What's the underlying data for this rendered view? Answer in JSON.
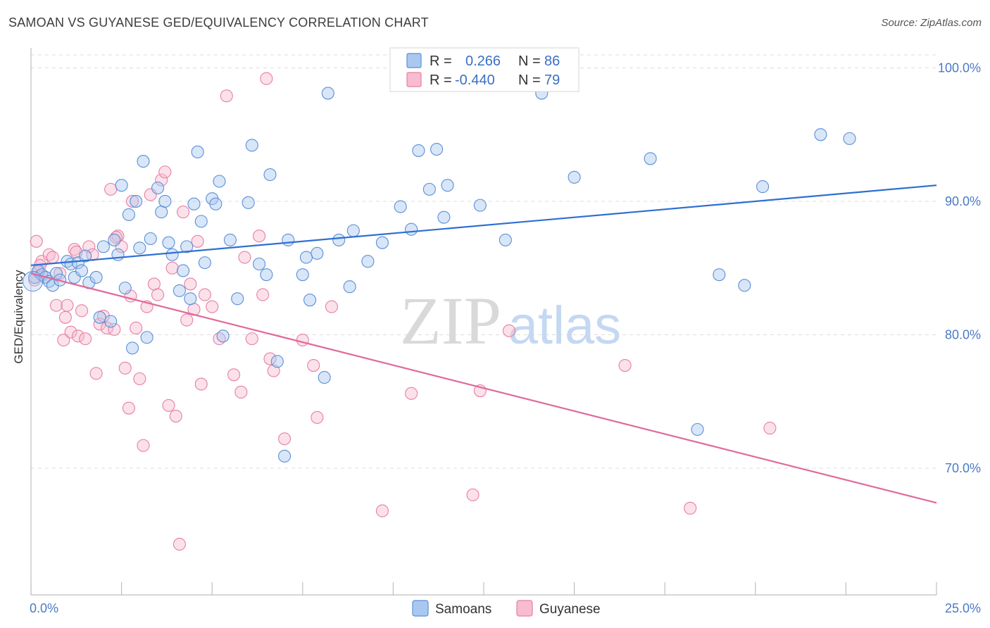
{
  "title": "SAMOAN VS GUYANESE GED/EQUIVALENCY CORRELATION CHART",
  "source": "Source: ZipAtlas.com",
  "watermark": {
    "zip": "ZIP",
    "atlas": "atlas"
  },
  "colors": {
    "samoan_fill": "#a9c8f0",
    "samoan_stroke": "#5b8fd6",
    "samoan_line": "#2f6fd1",
    "guyanese_fill": "#f7bcd0",
    "guyanese_stroke": "#e87fa3",
    "guyanese_line": "#e0699a",
    "tick_label": "#4a7ac4",
    "grid": "#dcdcdc"
  },
  "legend": {
    "rows": [
      {
        "r_label": "R =",
        "r_value": "0.266",
        "n_label": "N =",
        "n_value": "86"
      },
      {
        "r_label": "R =",
        "r_value": "-0.440",
        "n_label": "N =",
        "n_value": "79"
      }
    ]
  },
  "bottom_legend": [
    "Samoans",
    "Guyanese"
  ],
  "chart_data": {
    "type": "scatter",
    "title": "SAMOAN VS GUYANESE GED/EQUIVALENCY CORRELATION CHART",
    "xlabel": "",
    "ylabel": "GED/Equivalency",
    "xlim": [
      0,
      25
    ],
    "ylim": [
      60.5,
      101.5
    ],
    "x_tick_labels": [
      {
        "value": 0,
        "label": "0.0%"
      },
      {
        "value": 25,
        "label": "25.0%"
      }
    ],
    "y_tick_labels": [
      {
        "value": 70,
        "label": "70.0%"
      },
      {
        "value": 80,
        "label": "80.0%"
      },
      {
        "value": 90,
        "label": "90.0%"
      },
      {
        "value": 100,
        "label": "100.0%"
      }
    ],
    "grid": true,
    "legend_position": "top-center",
    "series": [
      {
        "name": "Samoans",
        "r": 0.266,
        "n": 86,
        "trend": {
          "x": [
            0,
            25
          ],
          "y": [
            85.2,
            91.2
          ]
        },
        "points": [
          [
            0.1,
            84.3
          ],
          [
            0.2,
            84.8
          ],
          [
            0.3,
            84.5
          ],
          [
            0.4,
            84.3
          ],
          [
            0.5,
            84.0
          ],
          [
            0.6,
            83.7
          ],
          [
            0.7,
            84.6
          ],
          [
            0.8,
            84.1
          ],
          [
            1.0,
            85.5
          ],
          [
            1.1,
            85.3
          ],
          [
            1.2,
            84.3
          ],
          [
            1.3,
            85.4
          ],
          [
            1.4,
            84.8
          ],
          [
            1.5,
            85.9
          ],
          [
            1.6,
            83.9
          ],
          [
            1.8,
            84.3
          ],
          [
            1.9,
            81.3
          ],
          [
            2.0,
            86.6
          ],
          [
            2.2,
            81.0
          ],
          [
            2.3,
            87.1
          ],
          [
            2.4,
            86.0
          ],
          [
            2.5,
            91.2
          ],
          [
            2.6,
            83.5
          ],
          [
            2.7,
            89.0
          ],
          [
            2.8,
            79.0
          ],
          [
            2.9,
            90.0
          ],
          [
            3.0,
            86.5
          ],
          [
            3.1,
            93.0
          ],
          [
            3.2,
            79.8
          ],
          [
            3.3,
            87.2
          ],
          [
            3.5,
            91.0
          ],
          [
            3.6,
            89.2
          ],
          [
            3.7,
            90.0
          ],
          [
            3.8,
            86.9
          ],
          [
            3.9,
            86.0
          ],
          [
            4.1,
            83.3
          ],
          [
            4.2,
            84.8
          ],
          [
            4.3,
            86.6
          ],
          [
            4.4,
            82.7
          ],
          [
            4.5,
            89.8
          ],
          [
            4.6,
            93.7
          ],
          [
            4.7,
            88.5
          ],
          [
            4.8,
            85.4
          ],
          [
            5.0,
            90.2
          ],
          [
            5.1,
            89.8
          ],
          [
            5.2,
            91.5
          ],
          [
            5.3,
            79.9
          ],
          [
            5.5,
            87.1
          ],
          [
            5.7,
            82.7
          ],
          [
            6.0,
            89.9
          ],
          [
            6.1,
            94.2
          ],
          [
            6.3,
            85.3
          ],
          [
            6.5,
            84.5
          ],
          [
            6.6,
            92.0
          ],
          [
            6.8,
            78.0
          ],
          [
            7.0,
            70.9
          ],
          [
            7.1,
            87.1
          ],
          [
            7.5,
            84.5
          ],
          [
            7.6,
            85.8
          ],
          [
            7.7,
            82.6
          ],
          [
            7.9,
            86.1
          ],
          [
            8.1,
            76.8
          ],
          [
            8.2,
            98.1
          ],
          [
            8.5,
            87.1
          ],
          [
            8.8,
            83.6
          ],
          [
            8.9,
            87.8
          ],
          [
            9.3,
            85.5
          ],
          [
            9.7,
            86.9
          ],
          [
            10.2,
            89.6
          ],
          [
            10.5,
            87.9
          ],
          [
            10.7,
            93.8
          ],
          [
            11.0,
            90.9
          ],
          [
            11.2,
            93.9
          ],
          [
            11.4,
            88.8
          ],
          [
            11.5,
            91.2
          ],
          [
            12.4,
            89.7
          ],
          [
            13.1,
            87.1
          ],
          [
            14.1,
            98.1
          ],
          [
            15.0,
            91.8
          ],
          [
            17.1,
            93.2
          ],
          [
            18.4,
            72.9
          ],
          [
            19.0,
            84.5
          ],
          [
            19.7,
            83.7
          ],
          [
            20.2,
            91.1
          ],
          [
            21.8,
            95.0
          ],
          [
            22.6,
            94.7
          ]
        ]
      },
      {
        "name": "Guyanese",
        "r": -0.44,
        "n": 79,
        "trend": {
          "x": [
            0,
            25
          ],
          "y": [
            84.6,
            67.4
          ]
        },
        "points": [
          [
            0.1,
            84.1
          ],
          [
            0.15,
            87.0
          ],
          [
            0.3,
            85.5
          ],
          [
            0.4,
            84.3
          ],
          [
            0.5,
            86.0
          ],
          [
            0.6,
            85.8
          ],
          [
            0.7,
            82.2
          ],
          [
            0.8,
            84.6
          ],
          [
            0.9,
            79.6
          ],
          [
            0.95,
            81.3
          ],
          [
            1.0,
            82.2
          ],
          [
            1.1,
            80.2
          ],
          [
            1.2,
            86.4
          ],
          [
            1.3,
            79.9
          ],
          [
            1.4,
            81.8
          ],
          [
            1.5,
            79.7
          ],
          [
            1.6,
            86.6
          ],
          [
            1.7,
            86.0
          ],
          [
            1.8,
            77.1
          ],
          [
            1.9,
            80.8
          ],
          [
            2.0,
            81.4
          ],
          [
            2.1,
            80.5
          ],
          [
            2.2,
            90.9
          ],
          [
            2.3,
            80.4
          ],
          [
            2.4,
            87.4
          ],
          [
            2.5,
            86.6
          ],
          [
            2.6,
            77.5
          ],
          [
            2.7,
            74.5
          ],
          [
            2.75,
            82.9
          ],
          [
            2.8,
            90.0
          ],
          [
            2.9,
            80.5
          ],
          [
            3.0,
            76.7
          ],
          [
            3.1,
            71.7
          ],
          [
            3.2,
            82.1
          ],
          [
            3.3,
            90.5
          ],
          [
            3.4,
            83.8
          ],
          [
            3.5,
            83.0
          ],
          [
            3.6,
            91.6
          ],
          [
            3.7,
            92.2
          ],
          [
            3.8,
            74.7
          ],
          [
            3.9,
            85.0
          ],
          [
            4.0,
            73.9
          ],
          [
            4.1,
            64.3
          ],
          [
            4.2,
            89.2
          ],
          [
            4.3,
            81.1
          ],
          [
            4.4,
            83.8
          ],
          [
            4.5,
            81.9
          ],
          [
            4.6,
            87.0
          ],
          [
            4.7,
            76.3
          ],
          [
            4.8,
            83.0
          ],
          [
            5.0,
            82.1
          ],
          [
            5.2,
            79.7
          ],
          [
            5.4,
            97.9
          ],
          [
            5.6,
            77.0
          ],
          [
            5.8,
            75.7
          ],
          [
            5.9,
            85.8
          ],
          [
            6.1,
            79.7
          ],
          [
            6.3,
            87.4
          ],
          [
            6.4,
            83.0
          ],
          [
            6.5,
            99.2
          ],
          [
            6.6,
            78.2
          ],
          [
            6.7,
            77.3
          ],
          [
            7.0,
            72.2
          ],
          [
            7.5,
            79.6
          ],
          [
            7.8,
            77.7
          ],
          [
            7.9,
            73.8
          ],
          [
            8.3,
            82.1
          ],
          [
            9.7,
            66.8
          ],
          [
            10.5,
            75.6
          ],
          [
            12.2,
            68.0
          ],
          [
            12.4,
            75.8
          ],
          [
            13.2,
            80.3
          ],
          [
            16.4,
            77.7
          ],
          [
            18.2,
            67.0
          ],
          [
            20.4,
            73.0
          ],
          [
            0.2,
            84.7
          ],
          [
            0.25,
            85.2
          ],
          [
            1.25,
            86.2
          ],
          [
            2.35,
            87.3
          ]
        ]
      }
    ]
  }
}
